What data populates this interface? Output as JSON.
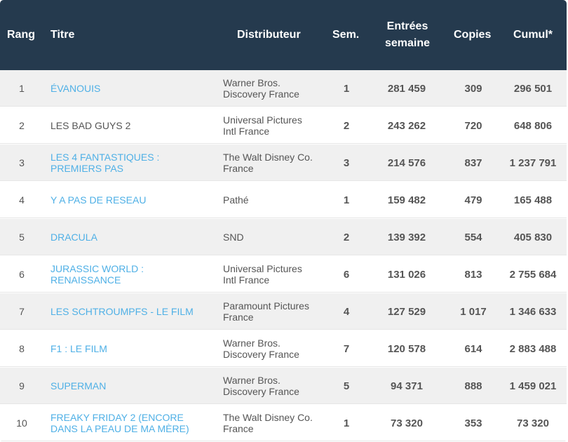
{
  "header": {
    "rang": "Rang",
    "titre": "Titre",
    "distributeur": "Distributeur",
    "sem": "Sem.",
    "entrees_line1": "Entrées",
    "entrees_line2": "semaine",
    "copies": "Copies",
    "cumul": "Cumul*"
  },
  "rows": [
    {
      "rang": "1",
      "title_line1": "ÉVANOUIS",
      "title_line2": "",
      "dist_line1": "Warner Bros.",
      "dist_line2": "Discovery France",
      "sem": "1",
      "entrees": "281 459",
      "copies": "309",
      "cumul": "296 501"
    },
    {
      "rang": "2",
      "title_line1": "LES BAD GUYS 2",
      "title_line2": "",
      "dist_line1": "Universal Pictures",
      "dist_line2": "Intl France",
      "sem": "2",
      "entrees": "243 262",
      "copies": "720",
      "cumul": "648 806"
    },
    {
      "rang": "3",
      "title_line1": "LES 4 FANTASTIQUES :",
      "title_line2": "PREMIERS PAS",
      "dist_line1": "The Walt Disney Co.",
      "dist_line2": "France",
      "sem": "3",
      "entrees": "214 576",
      "copies": "837",
      "cumul": "1 237 791"
    },
    {
      "rang": "4",
      "title_line1": "Y A PAS DE RESEAU",
      "title_line2": "",
      "dist_line1": "Pathé",
      "dist_line2": "",
      "sem": "1",
      "entrees": "159 482",
      "copies": "479",
      "cumul": "165 488"
    },
    {
      "rang": "5",
      "title_line1": "DRACULA",
      "title_line2": "",
      "dist_line1": "SND",
      "dist_line2": "",
      "sem": "2",
      "entrees": "139 392",
      "copies": "554",
      "cumul": "405 830"
    },
    {
      "rang": "6",
      "title_line1": "JURASSIC WORLD :",
      "title_line2": "RENAISSANCE",
      "dist_line1": "Universal Pictures",
      "dist_line2": "Intl France",
      "sem": "6",
      "entrees": "131 026",
      "copies": "813",
      "cumul": "2 755 684"
    },
    {
      "rang": "7",
      "title_line1": "LES SCHTROUMPFS - LE FILM",
      "title_line2": "",
      "dist_line1": "Paramount Pictures",
      "dist_line2": "France",
      "sem": "4",
      "entrees": "127 529",
      "copies": "1 017",
      "cumul": "1 346 633"
    },
    {
      "rang": "8",
      "title_line1": "F1 : LE FILM",
      "title_line2": "",
      "dist_line1": "Warner Bros.",
      "dist_line2": "Discovery France",
      "sem": "7",
      "entrees": "120 578",
      "copies": "614",
      "cumul": "2 883 488"
    },
    {
      "rang": "9",
      "title_line1": "SUPERMAN",
      "title_line2": "",
      "dist_line1": "Warner Bros.",
      "dist_line2": "Discovery France",
      "sem": "5",
      "entrees": "94 371",
      "copies": "888",
      "cumul": "1 459 021"
    },
    {
      "rang": "10",
      "title_line1": "FREAKY FRIDAY 2 (ENCORE",
      "title_line2": "DANS LA PEAU DE MA MÈRE)",
      "dist_line1": "The Walt Disney Co.",
      "dist_line2": "France",
      "sem": "1",
      "entrees": "73 320",
      "copies": "353",
      "cumul": "73 320"
    }
  ]
}
